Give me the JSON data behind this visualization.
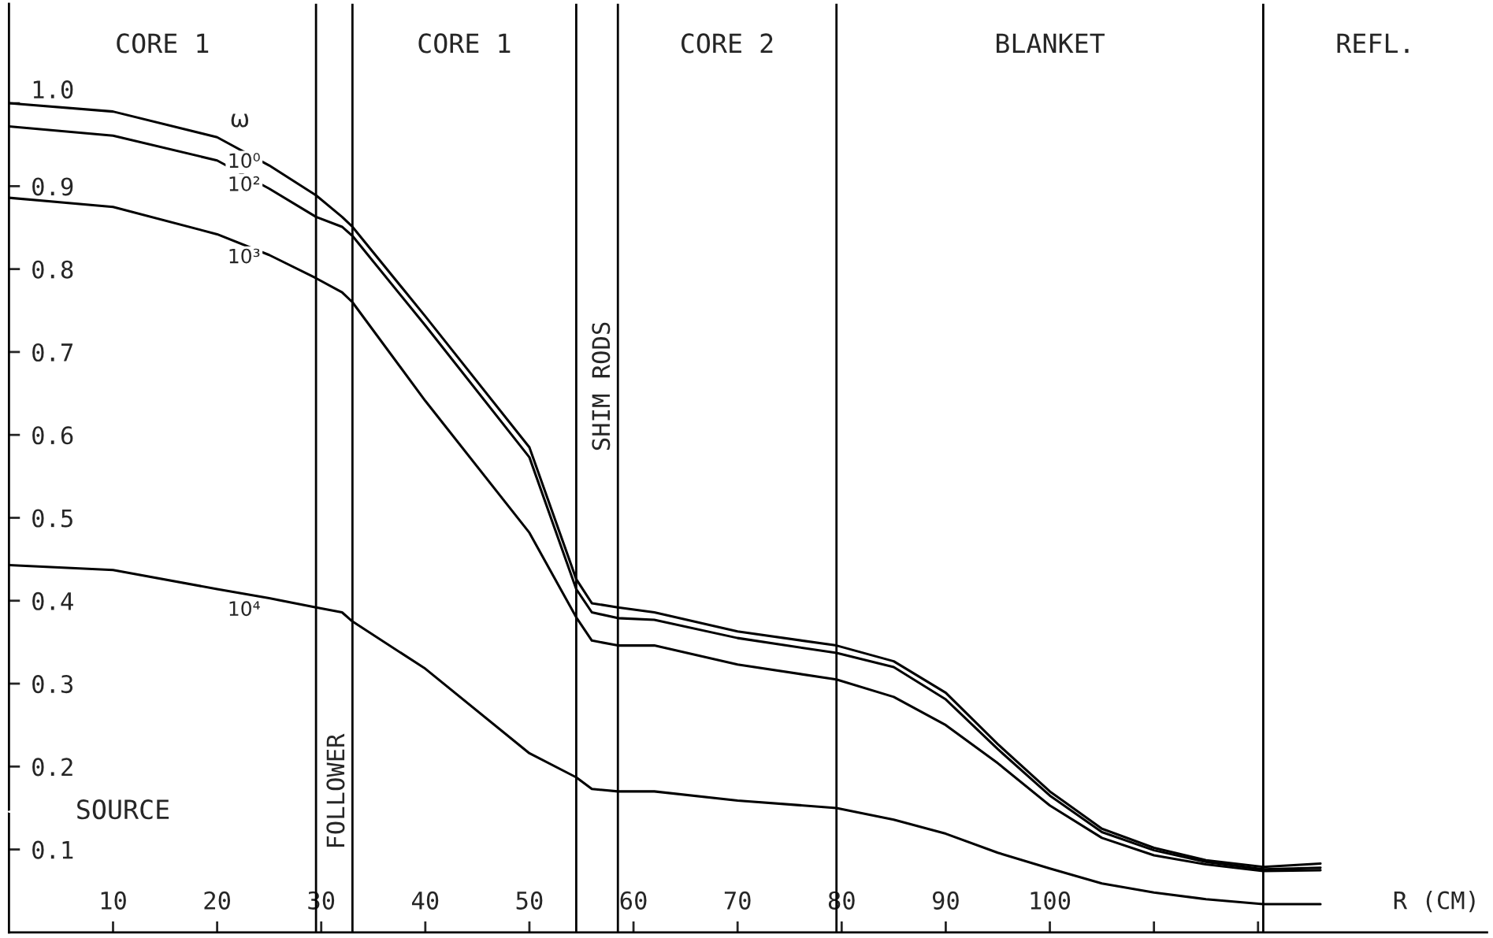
{
  "chart_data": {
    "type": "line",
    "xlabel": "R (CM)",
    "legend_title": "ω",
    "xlim": [
      0,
      142
    ],
    "ylim": [
      0,
      1.12
    ],
    "xticks": [
      10,
      20,
      30,
      40,
      50,
      60,
      70,
      80,
      90,
      100,
      {
        "value": 110,
        "label": null
      },
      {
        "value": 120,
        "label": null
      }
    ],
    "yticks": [
      0.1,
      0.2,
      0.3,
      0.4,
      0.5,
      0.6,
      0.7,
      0.8,
      0.9,
      {
        "value": 1.0,
        "label": "1.0"
      }
    ],
    "grid": false,
    "legend": false,
    "line_style": "solid",
    "marker": "none",
    "x": [
      0,
      10,
      20,
      25,
      29.5,
      32,
      33,
      40,
      50,
      54.5,
      56,
      58.5,
      62,
      70,
      79.5,
      85,
      90,
      95,
      100,
      105,
      110,
      115,
      120.5,
      126
    ],
    "series": [
      {
        "name": "10⁰",
        "color": "#000000",
        "values": [
          1.0,
          0.99,
          0.959,
          0.925,
          0.889,
          0.863,
          0.851,
          0.743,
          0.585,
          0.426,
          0.397,
          0.392,
          0.386,
          0.363,
          0.346,
          0.327,
          0.289,
          0.227,
          0.17,
          0.125,
          0.102,
          0.087,
          0.079,
          0.083
        ]
      },
      {
        "name": "10²",
        "color": "#000000",
        "values": [
          0.972,
          0.961,
          0.931,
          0.897,
          0.863,
          0.851,
          0.84,
          0.732,
          0.573,
          0.414,
          0.386,
          0.379,
          0.377,
          0.355,
          0.337,
          0.32,
          0.281,
          0.221,
          0.165,
          0.121,
          0.099,
          0.085,
          0.076,
          0.078
        ]
      },
      {
        "name": "10³",
        "color": "#000000",
        "values": [
          0.886,
          0.875,
          0.842,
          0.817,
          0.789,
          0.772,
          0.76,
          0.641,
          0.482,
          0.38,
          0.352,
          0.346,
          0.346,
          0.323,
          0.305,
          0.284,
          0.25,
          0.204,
          0.153,
          0.114,
          0.093,
          0.082,
          0.074,
          0.075
        ]
      },
      {
        "name": "10⁴",
        "color": "#000000",
        "values": [
          0.443,
          0.437,
          0.414,
          0.403,
          0.392,
          0.386,
          0.375,
          0.318,
          0.216,
          0.187,
          0.173,
          0.17,
          0.17,
          0.159,
          0.15,
          0.136,
          0.119,
          0.096,
          0.077,
          0.059,
          0.048,
          0.04,
          0.034,
          0.034
        ]
      }
    ],
    "ref_lines": [
      {
        "axis": "x",
        "value": 29.5,
        "label": null,
        "color": "#000000"
      },
      {
        "axis": "x",
        "value": 33,
        "label": "FOLLOWER",
        "color": "#000000"
      },
      {
        "axis": "x",
        "value": 54.5,
        "label": null,
        "color": "#000000"
      },
      {
        "axis": "x",
        "value": 58.5,
        "label": "SHIM RODS",
        "color": "#000000"
      },
      {
        "axis": "x",
        "value": 79.5,
        "label": null,
        "color": "#000000"
      },
      {
        "axis": "x",
        "value": 120.5,
        "label": null,
        "color": "#000000"
      }
    ],
    "annotations": [
      "CORE 1",
      "CORE 1",
      "CORE 2",
      "BLANKET",
      "REFL.",
      "SOURCE"
    ]
  }
}
